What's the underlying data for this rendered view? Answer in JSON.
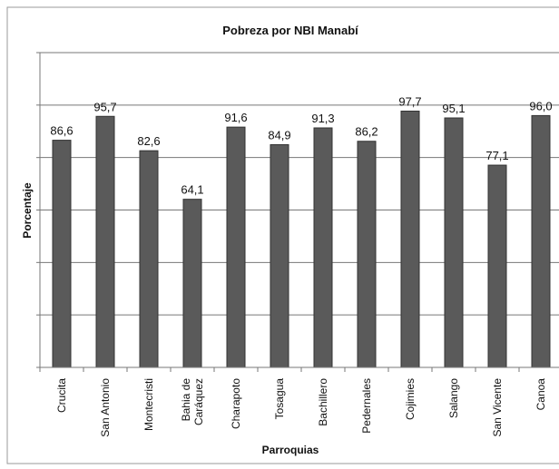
{
  "chart_data": {
    "type": "bar",
    "title": "Pobreza por NBI Manabí",
    "x_label": "Parroquias",
    "y_label": "Porcentaje",
    "categories": [
      "Crucita",
      "San Antonio",
      "Montecristi",
      "Bahia de Caráquez",
      "Charapoto",
      "Tosagua",
      "Bachillero",
      "Pedernales",
      "Cojimies",
      "Salango",
      "San Vicente",
      "Canoa"
    ],
    "values": [
      86.6,
      95.7,
      82.6,
      64.1,
      91.6,
      84.9,
      91.3,
      86.2,
      97.7,
      95.1,
      77.1,
      96.0
    ],
    "value_labels": [
      "86,6",
      "95,7",
      "82,6",
      "64,1",
      "91,6",
      "84,9",
      "91,3",
      "86,2",
      "97,7",
      "95,1",
      "77,1",
      "96,0"
    ],
    "color": "#5a5a5a",
    "ylim": [
      0,
      120
    ],
    "yticks": [
      0,
      20,
      40,
      60,
      80,
      100,
      120
    ],
    "grid": true
  }
}
